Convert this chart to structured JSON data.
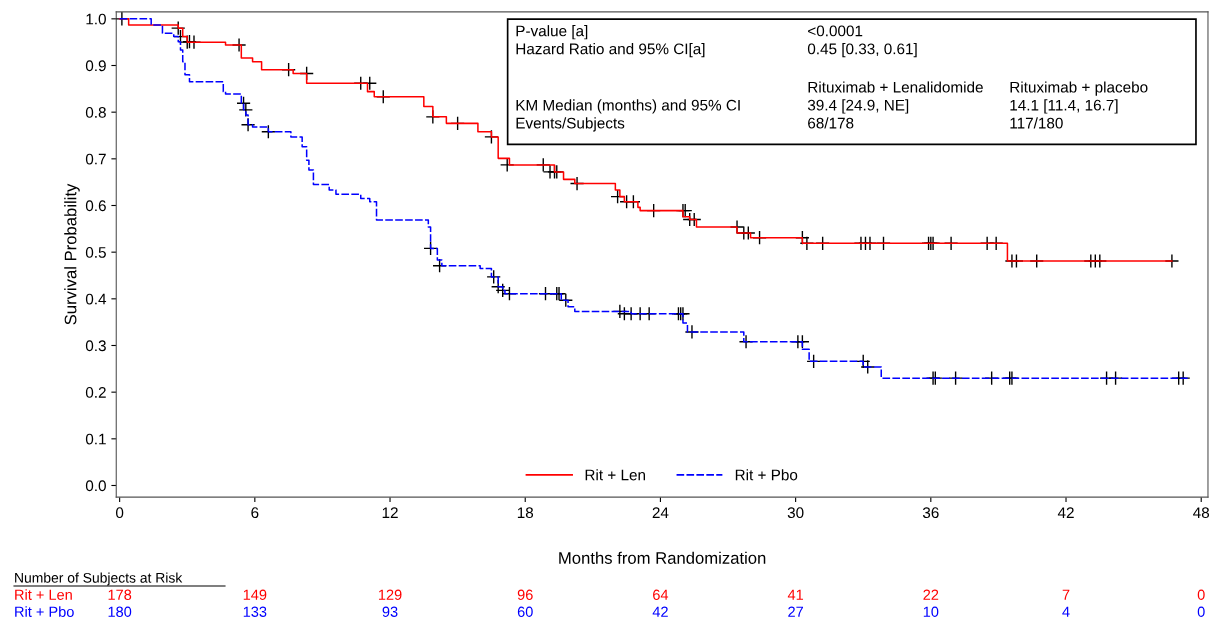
{
  "chart_data": {
    "type": "step",
    "xlabel": "Months from Randomization",
    "ylabel": "Survival Probability",
    "xlim": [
      -0.15,
      48.3
    ],
    "ylim": [
      -0.025,
      1.015
    ],
    "xticks": [
      0,
      6,
      12,
      18,
      24,
      30,
      36,
      42,
      48
    ],
    "yticks": [
      {
        "value": 0,
        "label": "0.0"
      },
      0.1,
      0.2,
      0.3,
      0.4,
      0.5,
      0.6,
      0.7,
      0.8,
      0.9,
      {
        "value": 1,
        "label": "1.0"
      }
    ],
    "grid": false,
    "legend": "bottom",
    "series": [
      {
        "name": "Rit + Len",
        "color": "#ff0000",
        "line_style": "solid",
        "x": [
          0,
          0.4,
          2.6,
          2.8,
          3.0,
          4.7,
          5.4,
          5.9,
          6.3,
          7.7,
          8.3,
          11.0,
          11.3,
          13.5,
          13.9,
          14.5,
          15.9,
          16.5,
          16.8,
          17.3,
          19.3,
          19.7,
          20.2,
          22.0,
          22.2,
          22.4,
          23.0,
          23.1,
          25.0,
          25.3,
          25.6,
          27.4,
          28.0,
          30.3,
          39.4,
          46.7
        ],
        "values": [
          1.0,
          0.987,
          0.98,
          0.962,
          0.95,
          0.944,
          0.916,
          0.908,
          0.891,
          0.883,
          0.862,
          0.844,
          0.833,
          0.812,
          0.79,
          0.776,
          0.758,
          0.747,
          0.701,
          0.687,
          0.672,
          0.656,
          0.647,
          0.633,
          0.619,
          0.608,
          0.596,
          0.589,
          0.576,
          0.57,
          0.554,
          0.541,
          0.531,
          0.519,
          0.481,
          0.481
        ]
      },
      {
        "name": "Rit + Pbo",
        "color": "#0000ff",
        "line_style": "dashed",
        "x": [
          0,
          1.4,
          1.9,
          2.4,
          2.6,
          2.7,
          2.8,
          2.9,
          3.1,
          4.6,
          4.7,
          5.4,
          5.5,
          5.6,
          5.7,
          5.9,
          6.6,
          7.6,
          8.1,
          8.3,
          8.4,
          8.6,
          9.3,
          9.6,
          10.7,
          11.1,
          11.4,
          13.7,
          13.8,
          14.1,
          14.3,
          16.0,
          16.5,
          16.8,
          17.0,
          17.1,
          19.6,
          19.9,
          20.2,
          22.7,
          25.0,
          25.2,
          27.7,
          30.3,
          30.6,
          33.0,
          33.8,
          47.4
        ],
        "values": [
          1.0,
          0.987,
          0.969,
          0.962,
          0.951,
          0.933,
          0.908,
          0.88,
          0.865,
          0.844,
          0.839,
          0.819,
          0.805,
          0.794,
          0.773,
          0.768,
          0.758,
          0.747,
          0.726,
          0.697,
          0.676,
          0.645,
          0.633,
          0.624,
          0.615,
          0.608,
          0.569,
          0.554,
          0.508,
          0.483,
          0.471,
          0.465,
          0.447,
          0.426,
          0.418,
          0.411,
          0.397,
          0.383,
          0.373,
          0.368,
          0.348,
          0.329,
          0.308,
          0.292,
          0.266,
          0.254,
          0.23,
          0.23
        ]
      },
      {
        "type": "scatter",
        "color": "#000000",
        "marker": "cross",
        "x": [
          0.1,
          2.6,
          3.0,
          3.3,
          5.3,
          7.5,
          8.3,
          10.7,
          11.1,
          11.7,
          13.9,
          15.0,
          16.5,
          17.2,
          18.8,
          19.1,
          19.3,
          19.4,
          20.3,
          22.1,
          22.5,
          22.8,
          23.7,
          25.0,
          25.1,
          25.3,
          25.5,
          27.4,
          27.7,
          27.9,
          28.4,
          30.3,
          30.5,
          31.2,
          32.9,
          33.1,
          33.3,
          33.9,
          35.9,
          36.0,
          36.1,
          36.9,
          38.5,
          38.9,
          39.6,
          39.8,
          40.7,
          43.1,
          43.3,
          43.5,
          46.7
        ],
        "values": [
          1.0,
          0.98,
          0.95,
          0.95,
          0.944,
          0.891,
          0.883,
          0.862,
          0.862,
          0.833,
          0.79,
          0.776,
          0.747,
          0.687,
          0.687,
          0.672,
          0.672,
          0.672,
          0.647,
          0.619,
          0.608,
          0.608,
          0.589,
          0.589,
          0.589,
          0.57,
          0.57,
          0.554,
          0.541,
          0.541,
          0.531,
          0.531,
          0.519,
          0.519,
          0.519,
          0.519,
          0.519,
          0.519,
          0.519,
          0.519,
          0.519,
          0.519,
          0.519,
          0.519,
          0.481,
          0.481,
          0.481,
          0.481,
          0.481,
          0.481,
          0.481
        ]
      },
      {
        "type": "scatter",
        "color": "#000000",
        "marker": "cross",
        "x": [
          2.7,
          3.1,
          5.5,
          5.6,
          5.7,
          6.6,
          13.8,
          14.2,
          16.6,
          16.8,
          17.0,
          17.3,
          18.9,
          19.4,
          19.5,
          19.8,
          22.2,
          22.4,
          22.7,
          23.1,
          23.5,
          24.8,
          24.9,
          25.0,
          25.4,
          27.8,
          30.1,
          30.3,
          30.8,
          33.0,
          33.2,
          36.1,
          36.2,
          37.1,
          38.7,
          39.5,
          39.6,
          43.8,
          44.2,
          47.0,
          47.2
        ],
        "values": [
          0.962,
          0.951,
          0.819,
          0.805,
          0.773,
          0.758,
          0.508,
          0.471,
          0.447,
          0.426,
          0.418,
          0.411,
          0.411,
          0.411,
          0.411,
          0.397,
          0.373,
          0.368,
          0.368,
          0.368,
          0.368,
          0.368,
          0.368,
          0.368,
          0.329,
          0.308,
          0.308,
          0.308,
          0.266,
          0.266,
          0.254,
          0.23,
          0.23,
          0.23,
          0.23,
          0.23,
          0.23,
          0.23,
          0.23,
          0.23,
          0.23
        ]
      }
    ],
    "annotations": [
      "P-value [a]",
      "<0.0001",
      "Hazard Ratio and 95% CI[a]",
      "0.45 [0.33, 0.61]",
      "Rituximab + Lenalidomide",
      "Rituximab + placebo",
      "KM Median (months) and 95% CI",
      "39.4 [24.9, NE]",
      "14.1 [11.4, 16.7]",
      "Events/Subjects",
      "68/178",
      "117/180",
      "Number of Subjects at Risk",
      "Rit + Len",
      "178",
      "149",
      "129",
      "96",
      "64",
      "41",
      "22",
      "7",
      "0",
      "Rit + Pbo",
      "180",
      "133",
      "93",
      "60",
      "42",
      "27",
      "10",
      "4",
      "0"
    ]
  }
}
